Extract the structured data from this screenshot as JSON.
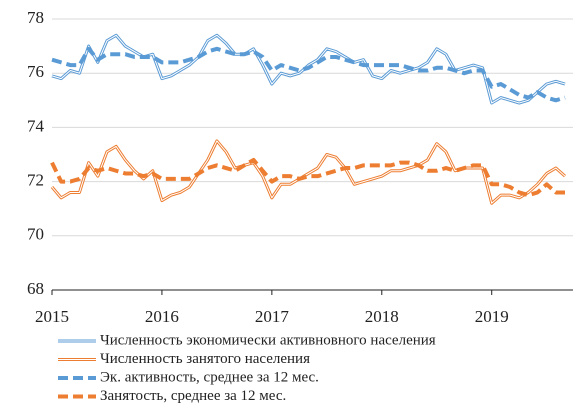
{
  "chart_data": {
    "type": "line",
    "categories": [
      "2015",
      null,
      null,
      null,
      null,
      null,
      null,
      null,
      null,
      null,
      null,
      null,
      "2016",
      null,
      null,
      null,
      null,
      null,
      null,
      null,
      null,
      null,
      null,
      null,
      "2017",
      null,
      null,
      null,
      null,
      null,
      null,
      null,
      null,
      null,
      null,
      null,
      "2018",
      null,
      null,
      null,
      null,
      null,
      null,
      null,
      null,
      null,
      null,
      null,
      "2019",
      null,
      null,
      null,
      null,
      null,
      null,
      null,
      null
    ],
    "ylim": [
      68,
      78
    ],
    "yticks": [
      68,
      70,
      72,
      74,
      76,
      78
    ],
    "grid": true,
    "series": [
      {
        "name": "Численность экономически активновного населения",
        "color": "#5b9bd5",
        "style": "double",
        "values": [
          75.9,
          75.8,
          76.1,
          76.0,
          77.0,
          76.4,
          77.2,
          77.4,
          77.0,
          76.8,
          76.6,
          76.7,
          75.8,
          75.9,
          76.1,
          76.3,
          76.6,
          77.2,
          77.4,
          77.1,
          76.7,
          76.7,
          76.9,
          76.3,
          75.6,
          76.0,
          75.9,
          76.0,
          76.3,
          76.5,
          76.9,
          76.8,
          76.6,
          76.4,
          76.5,
          75.9,
          75.8,
          76.1,
          76.0,
          76.1,
          76.2,
          76.4,
          76.9,
          76.7,
          76.1,
          76.2,
          76.3,
          76.2,
          74.9,
          75.1,
          75.0,
          74.9,
          75.0,
          75.3,
          75.6,
          75.7,
          75.6
        ]
      },
      {
        "name": "Численность занятого населения",
        "color": "#ed7d31",
        "style": "double",
        "values": [
          71.8,
          71.4,
          71.6,
          71.6,
          72.7,
          72.2,
          73.1,
          73.3,
          72.8,
          72.4,
          72.1,
          72.4,
          71.3,
          71.5,
          71.6,
          71.8,
          72.3,
          72.8,
          73.5,
          73.1,
          72.5,
          72.6,
          72.7,
          72.2,
          71.4,
          71.9,
          71.9,
          72.1,
          72.3,
          72.5,
          73.0,
          72.9,
          72.5,
          71.9,
          72.0,
          72.1,
          72.2,
          72.4,
          72.4,
          72.5,
          72.6,
          72.8,
          73.4,
          73.1,
          72.4,
          72.5,
          72.5,
          72.5,
          71.2,
          71.5,
          71.5,
          71.4,
          71.6,
          71.9,
          72.3,
          72.5,
          72.2
        ]
      },
      {
        "name": "Эк. активность, среднее за 12 мес.",
        "color": "#5b9bd5",
        "style": "dashed",
        "values": [
          76.5,
          76.4,
          76.3,
          76.3,
          76.9,
          76.5,
          76.7,
          76.7,
          76.7,
          76.6,
          76.6,
          76.6,
          76.4,
          76.4,
          76.4,
          76.5,
          76.6,
          76.8,
          76.9,
          76.8,
          76.7,
          76.7,
          76.8,
          76.6,
          76.1,
          76.3,
          76.2,
          76.1,
          76.2,
          76.4,
          76.6,
          76.6,
          76.5,
          76.4,
          76.3,
          76.3,
          76.3,
          76.3,
          76.3,
          76.2,
          76.1,
          76.1,
          76.2,
          76.2,
          76.1,
          76.0,
          76.1,
          76.1,
          75.5,
          75.6,
          75.4,
          75.2,
          75.1,
          75.3,
          75.1,
          75.0,
          75.1
        ]
      },
      {
        "name": "Занятость, среднее за 12 мес.",
        "color": "#ed7d31",
        "style": "dashed",
        "values": [
          72.7,
          72.0,
          72.0,
          72.1,
          72.5,
          72.4,
          72.5,
          72.4,
          72.3,
          72.3,
          72.2,
          72.3,
          72.1,
          72.1,
          72.1,
          72.1,
          72.3,
          72.5,
          72.6,
          72.5,
          72.4,
          72.6,
          72.8,
          72.4,
          72.0,
          72.2,
          72.2,
          72.1,
          72.2,
          72.2,
          72.3,
          72.4,
          72.5,
          72.5,
          72.6,
          72.6,
          72.6,
          72.6,
          72.7,
          72.7,
          72.6,
          72.4,
          72.4,
          72.5,
          72.4,
          72.5,
          72.6,
          72.6,
          71.9,
          71.9,
          71.8,
          71.6,
          71.5,
          71.6,
          71.9,
          71.6,
          71.6
        ]
      }
    ]
  }
}
